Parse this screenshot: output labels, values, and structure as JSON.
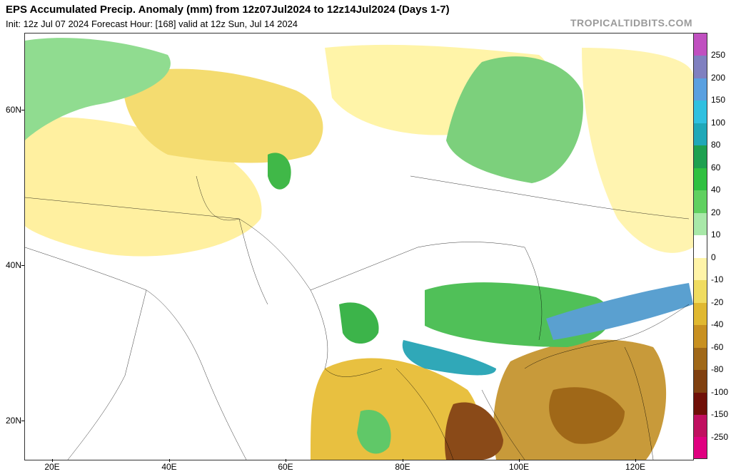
{
  "header": {
    "title": "EPS Accumulated Precip. Anomaly (mm) from 12z07Jul2024 to 12z14Jul2024 (Days 1-7)",
    "subtitle": "Init: 12z Jul 07 2024   Forecast Hour: [168]   valid at 12z Sun, Jul 14 2024",
    "credit": "TROPICALTIDBITS.COM"
  },
  "map": {
    "lat_labels": [
      "60N",
      "40N",
      "20N"
    ],
    "lon_labels": [
      "20E",
      "40E",
      "60E",
      "80E",
      "100E",
      "120E"
    ]
  },
  "colorbar": {
    "labels": [
      "250",
      "200",
      "150",
      "100",
      "80",
      "60",
      "40",
      "20",
      "10",
      "0",
      "-10",
      "-20",
      "-40",
      "-60",
      "-80",
      "-100",
      "-150",
      "-250"
    ],
    "colors": [
      "#c050c0",
      "#8080c0",
      "#5aa0e0",
      "#30c0e0",
      "#20a8b8",
      "#1ea050",
      "#30c040",
      "#60d060",
      "#a8e8a8",
      "#ffffff",
      "#fff4a8",
      "#f0dc60",
      "#e0b830",
      "#c89020",
      "#a06818",
      "#804010",
      "#701008",
      "#c01060",
      "#e00080"
    ],
    "accent_wet": "#2a9d3a",
    "accent_dry": "#c89020"
  }
}
